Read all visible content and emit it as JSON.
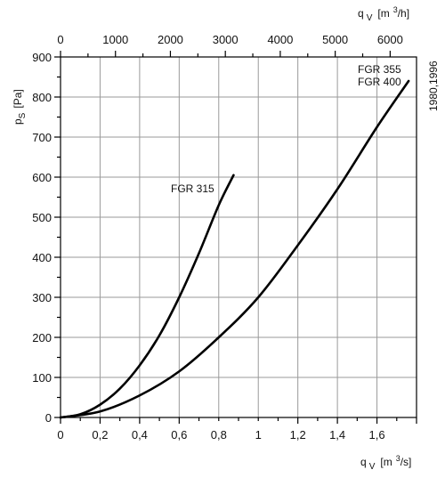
{
  "chart_data": {
    "type": "line",
    "x_axis_bottom": {
      "label_main": "q",
      "label_sub": "V",
      "label_unit_prefix": "[m",
      "label_unit_exp": "3",
      "label_unit_suffix": "/s]",
      "range": [
        0,
        1.8
      ],
      "ticks": [
        0,
        0.2,
        0.4,
        0.6,
        0.8,
        1,
        1.2,
        1.4,
        1.6
      ],
      "tick_labels": [
        "0",
        "0,2",
        "0,4",
        "0,6",
        "0,8",
        "1",
        "1,2",
        "1,4",
        "1,6"
      ],
      "minor_step": 0.1
    },
    "x_axis_top": {
      "label_main": "q",
      "label_sub": "V",
      "label_unit_prefix": "[m",
      "label_unit_exp": "3",
      "label_unit_suffix": "/h]",
      "ticks": [
        0,
        1000,
        2000,
        3000,
        4000,
        5000,
        6000
      ],
      "tick_labels": [
        "0",
        "1000",
        "2000",
        "3000",
        "4000",
        "5000",
        "6000"
      ],
      "minor_step": 500
    },
    "y_axis": {
      "label_main": "p",
      "label_sub": "S",
      "label_unit": "[Pa]",
      "range": [
        0,
        900
      ],
      "ticks": [
        0,
        100,
        200,
        300,
        400,
        500,
        600,
        700,
        800,
        900
      ],
      "tick_labels": [
        "0",
        "100",
        "200",
        "300",
        "400",
        "500",
        "600",
        "700",
        "800",
        "900"
      ],
      "minor_step": 50
    },
    "grid": true,
    "side_note": "1980,1996",
    "series": [
      {
        "name": "FGR 315",
        "x": [
          0,
          0.1,
          0.2,
          0.3,
          0.4,
          0.5,
          0.6,
          0.7,
          0.8,
          0.875
        ],
        "y": [
          0,
          8,
          32,
          72,
          130,
          205,
          300,
          410,
          530,
          605
        ]
      },
      {
        "name": "FGR 355\nFGR 400",
        "x": [
          0,
          0.2,
          0.4,
          0.6,
          0.8,
          1.0,
          1.2,
          1.4,
          1.6,
          1.76
        ],
        "y": [
          0,
          15,
          55,
          115,
          200,
          300,
          430,
          570,
          725,
          840
        ]
      }
    ]
  }
}
